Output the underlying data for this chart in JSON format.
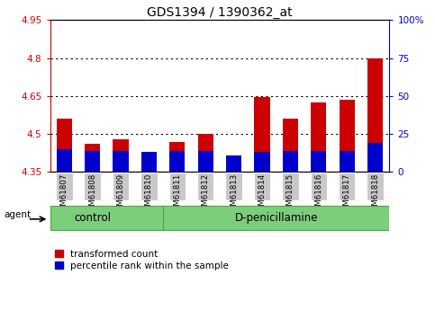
{
  "title": "GDS1394 / 1390362_at",
  "samples": [
    "GSM61807",
    "GSM61808",
    "GSM61809",
    "GSM61810",
    "GSM61811",
    "GSM61812",
    "GSM61813",
    "GSM61814",
    "GSM61815",
    "GSM61816",
    "GSM61817",
    "GSM61818"
  ],
  "transformed_count": [
    4.56,
    4.46,
    4.48,
    4.39,
    4.47,
    4.5,
    4.375,
    4.645,
    4.56,
    4.625,
    4.635,
    4.8
  ],
  "percentile_rank_pct": [
    15,
    14,
    14,
    13,
    14,
    14,
    11,
    13,
    14,
    14,
    14,
    19
  ],
  "y_min": 4.35,
  "y_max": 4.95,
  "y_ticks": [
    4.35,
    4.5,
    4.65,
    4.8,
    4.95
  ],
  "y_ticks_dotted": [
    4.5,
    4.65,
    4.8
  ],
  "right_y_ticks": [
    0,
    25,
    50,
    75,
    100
  ],
  "right_y_labels": [
    "0",
    "25",
    "50",
    "75",
    "100%"
  ],
  "bar_color_red": "#cc0000",
  "bar_color_blue": "#0000cc",
  "n_control": 4,
  "group_control_label": "control",
  "group_treatment_label": "D-penicillamine",
  "agent_label": "agent",
  "legend_red": "transformed count",
  "legend_blue": "percentile rank within the sample",
  "left_axis_color": "#cc0000",
  "right_axis_color": "#0000cc",
  "title_fontsize": 10,
  "tick_fontsize": 7.5,
  "group_label_fontsize": 8.5,
  "legend_fontsize": 7.5,
  "bar_width": 0.55,
  "tick_bg_color": "#c8c8c8",
  "group_bg_color": "#7ccd7c"
}
